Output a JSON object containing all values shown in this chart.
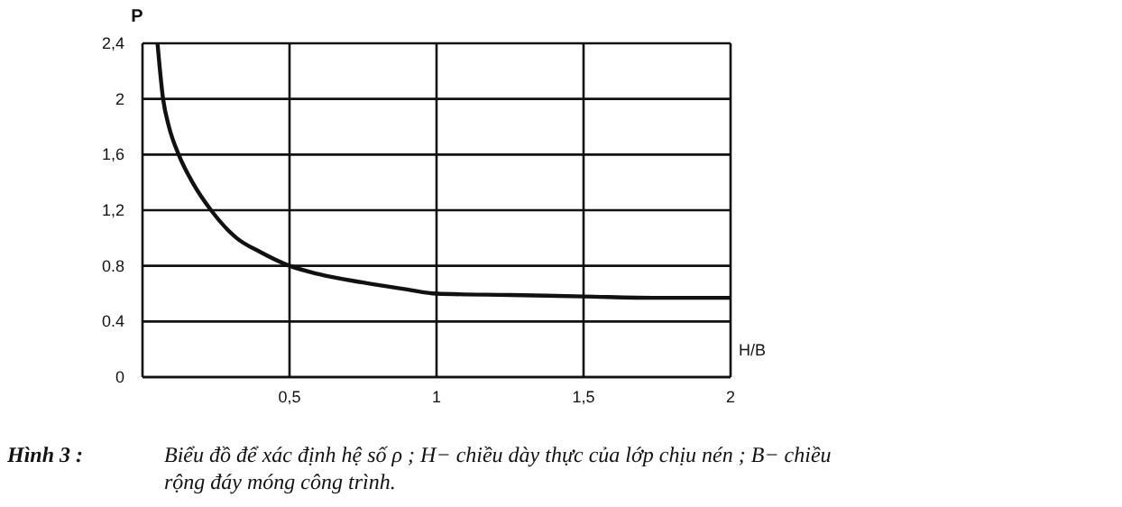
{
  "chart_data": {
    "type": "line",
    "xlabel": "H/B",
    "ylabel": "P",
    "x": [
      0.051,
      0.07,
      0.09,
      0.123,
      0.17,
      0.233,
      0.32,
      0.4,
      0.5,
      0.6,
      0.75,
      0.9,
      1,
      1.25,
      1.5,
      1.75,
      2
    ],
    "series": [
      {
        "color": "#111111",
        "values": [
          2.4,
          2,
          1.8,
          1.6,
          1.4,
          1.2,
          1,
          0.9,
          0.8,
          0.74,
          0.68,
          0.63,
          0.6,
          0.59,
          0.58,
          0.57,
          0.57
        ]
      }
    ],
    "xlim": [
      0,
      2
    ],
    "xticks": [
      {
        "value": 0.5,
        "label": "0,5"
      },
      1,
      {
        "value": 1.5,
        "label": "1,5"
      },
      2
    ],
    "ylim": [
      0,
      2.4
    ],
    "yticks": [
      0,
      0.4,
      0.8,
      {
        "value": 1.2,
        "label": "1,2"
      },
      {
        "value": 1.6,
        "label": "1,6"
      },
      2,
      {
        "value": 2.4,
        "label": "2,4"
      }
    ],
    "grid": true,
    "marker": "none",
    "line_style": "solid",
    "annotations": [
      "Hình 3 :",
      "Biểu đồ để xác định hệ số ρ ; H− chiều dày thực của lớp chịu nén ; B− chiều rộng đáy móng công trình."
    ]
  }
}
